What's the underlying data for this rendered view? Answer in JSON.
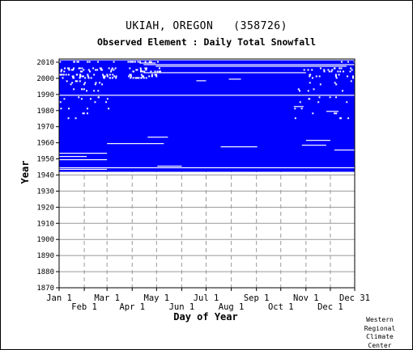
{
  "header": {
    "title": "UKIAH, OREGON   (358726)",
    "subtitle": "Observed Element : Daily Total Snowfall"
  },
  "chart_data": {
    "type": "heatmap",
    "title": "UKIAH, OREGON   (358726)",
    "subtitle": "Observed Element : Daily Total Snowfall",
    "xlabel": "Day of Year",
    "ylabel": "Year",
    "x_ticks_upper": [
      "Jan 1",
      "Mar 1",
      "May 1",
      "Jul 1",
      "Sep 1",
      "Nov 1",
      "Dec 31"
    ],
    "x_ticks_lower": [
      "Feb 1",
      "Apr 1",
      "Jun 1",
      "Aug 1",
      "Oct 1",
      "Dec 1"
    ],
    "x_tick_days_upper": [
      1,
      60,
      121,
      182,
      244,
      305,
      365
    ],
    "x_tick_days_lower": [
      32,
      91,
      152,
      213,
      274,
      335
    ],
    "y_ticks": [
      1870,
      1880,
      1890,
      1900,
      1910,
      1920,
      1930,
      1940,
      1950,
      1960,
      1970,
      1980,
      1990,
      2000,
      2010
    ],
    "ylim": [
      1870,
      2012
    ],
    "xlim": [
      1,
      365
    ],
    "data_years": [
      1942,
      2012
    ],
    "fill_color": "#0000ff",
    "grid": true,
    "grid_color": "#999999",
    "missing_bands": [
      {
        "year": 1943,
        "day_start": 1,
        "day_end": 60
      },
      {
        "year": 1944,
        "day_start": 1,
        "day_end": 365
      },
      {
        "year": 1945,
        "day_start": 122,
        "day_end": 152
      },
      {
        "year": 1949,
        "day_start": 1,
        "day_end": 60
      },
      {
        "year": 1951,
        "day_start": 1,
        "day_end": 35
      },
      {
        "year": 1953,
        "day_start": 1,
        "day_end": 60
      },
      {
        "year": 1955,
        "day_start": 340,
        "day_end": 365
      },
      {
        "year": 1957,
        "day_start": 200,
        "day_end": 245
      },
      {
        "year": 1958,
        "day_start": 300,
        "day_end": 330
      },
      {
        "year": 1959,
        "day_start": 60,
        "day_end": 130
      },
      {
        "year": 1961,
        "day_start": 305,
        "day_end": 335
      },
      {
        "year": 1963,
        "day_start": 110,
        "day_end": 135
      },
      {
        "year": 1979,
        "day_start": 330,
        "day_end": 345
      },
      {
        "year": 1982,
        "day_start": 290,
        "day_end": 302
      },
      {
        "year": 1989,
        "day_start": 1,
        "day_end": 365
      },
      {
        "year": 1998,
        "day_start": 170,
        "day_end": 182
      },
      {
        "year": 1999,
        "day_start": 210,
        "day_end": 225
      },
      {
        "year": 2003,
        "day_start": 105,
        "day_end": 305
      },
      {
        "year": 2007,
        "day_start": 120,
        "day_end": 355
      },
      {
        "year": 2008,
        "day_start": 105,
        "day_end": 365
      },
      {
        "year": 2009,
        "day_start": 100,
        "day_end": 120
      },
      {
        "year": 2011,
        "day_start": 1,
        "day_end": 365
      }
    ]
  },
  "credit": {
    "line1": "Western",
    "line2": "Regional",
    "line3": "Climate",
    "line4": "Center"
  }
}
